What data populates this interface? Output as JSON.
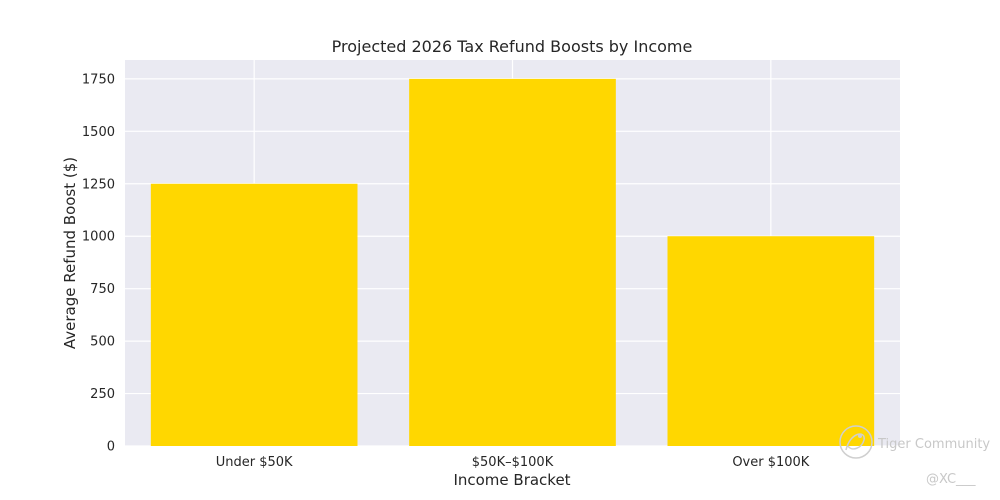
{
  "chart_data": {
    "type": "bar",
    "title": "Projected 2026 Tax Refund Boosts by Income",
    "xlabel": "Income Bracket",
    "ylabel": "Average Refund Boost ($)",
    "categories": [
      "Under $50K",
      "$50K–$100K",
      "Over $100K"
    ],
    "values": [
      1250,
      1750,
      1000
    ],
    "ylim": [
      0,
      1840
    ],
    "yticks": [
      0,
      250,
      500,
      750,
      1000,
      1250,
      1500,
      1750
    ],
    "grid": true,
    "bar_color": "#FFD700",
    "background_color": "#EAEAF2",
    "grid_color": "#FFFFFF"
  },
  "watermark": {
    "brand": "Tiger Community",
    "handle": "@XC___"
  }
}
